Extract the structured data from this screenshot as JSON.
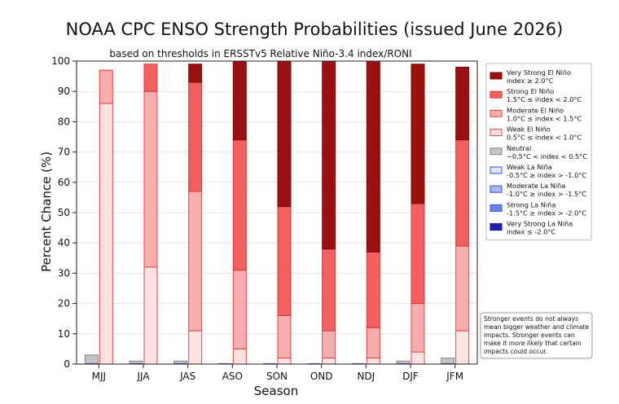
{
  "chart_data": {
    "type": "bar",
    "stacked": true,
    "title": "NOAA CPC ENSO Strength Probabilities (issued June 2026)",
    "subtitle": "based on thresholds in ERSSTv5 Relative Niño-3.4 index/RONI",
    "xlabel": "Season",
    "ylabel": "Percent Chance (%)",
    "ylim": [
      0,
      100
    ],
    "yticks": [
      0,
      10,
      20,
      30,
      40,
      50,
      60,
      70,
      80,
      90,
      100
    ],
    "grid": true,
    "legend_position": "right",
    "categories": [
      "MJJ",
      "JJA",
      "JAS",
      "ASO",
      "SON",
      "OND",
      "NDJ",
      "DJF",
      "JFM"
    ],
    "la_nina_group": {
      "series": [
        {
          "name": "Weak La Niña",
          "detail": "-0.5°C ≥ index > -1.0°C",
          "color": "#dfe6fb",
          "edge": "#3a4fd0",
          "values": [
            0,
            0,
            0,
            0,
            0,
            0,
            0,
            0,
            0
          ]
        },
        {
          "name": "Moderate La Niña",
          "detail": "-1.0°C ≥ index > -1.5°C",
          "color": "#a8b8ef",
          "edge": "#3a4fd0",
          "values": [
            0,
            0,
            0,
            0,
            0,
            0,
            0,
            0,
            0
          ]
        },
        {
          "name": "Strong La Niña",
          "detail": "-1.5°C ≥ index > -2.0°C",
          "color": "#6a82e6",
          "edge": "#3a4fd0",
          "values": [
            0,
            0,
            0,
            0,
            0,
            0,
            0,
            0,
            0
          ]
        },
        {
          "name": "Very Strong La Niña",
          "detail": "index ≤ -2.0°C",
          "color": "#1f1fb4",
          "edge": "#12127a",
          "values": [
            0,
            0,
            0,
            0,
            0,
            0,
            0,
            0,
            0
          ]
        }
      ]
    },
    "neutral_group": {
      "series": [
        {
          "name": "Neutral",
          "detail": "−0.5°C < index < 0.5°C",
          "color": "#c4c4c4",
          "edge": "#888888",
          "values": [
            3,
            1,
            1,
            0,
            0,
            0,
            0,
            1,
            2
          ]
        }
      ]
    },
    "el_nino_group": {
      "series": [
        {
          "name": "Weak El Niño",
          "detail": "0.5°C ≤ index < 1.0°C",
          "color": "#fde2e2",
          "edge": "#e0453f",
          "values": [
            86,
            32,
            11,
            5,
            2,
            2,
            2,
            4,
            11
          ]
        },
        {
          "name": "Moderate El Niño",
          "detail": "1.0°C ≤ index < 1.5°C",
          "color": "#f7adad",
          "edge": "#e0453f",
          "values": [
            11,
            58,
            46,
            26,
            14,
            9,
            10,
            16,
            28
          ]
        },
        {
          "name": "Strong El Niño",
          "detail": "1.5°C ≤ index < 2.0°C",
          "color": "#f35e5e",
          "edge": "#d23a3a",
          "values": [
            0,
            9,
            36,
            43,
            36,
            27,
            25,
            33,
            35
          ]
        },
        {
          "name": "Very Strong El Niño",
          "detail": "index ≥ 2.0°C",
          "color": "#9b1010",
          "edge": "#7a0b0b",
          "values": [
            0,
            0,
            6,
            26,
            48,
            62,
            63,
            46,
            24
          ]
        }
      ]
    },
    "legend_order": [
      "Very Strong El Niño",
      "Strong El Niño",
      "Moderate El Niño",
      "Weak El Niño",
      "Neutral",
      "Weak La Niña",
      "Moderate La Niña",
      "Strong La Niña",
      "Very Strong La Niña"
    ],
    "note": {
      "lines": [
        "Stronger events do not always",
        "mean bigger weather and climate",
        "impacts. Stronger events can",
        "make it more likely that certain",
        "impacts could occur."
      ],
      "emphasis": "more likely"
    }
  }
}
